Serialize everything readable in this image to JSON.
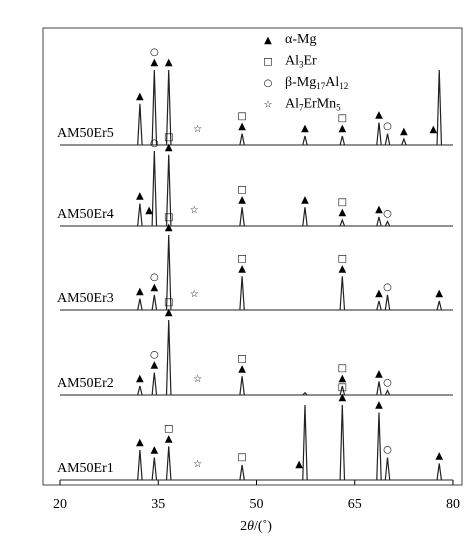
{
  "chart_data": {
    "type": "xrd-stack",
    "xlabel_parts": [
      "2",
      "θ",
      "/(˚)"
    ],
    "xlim": [
      20,
      80
    ],
    "xticks": [
      20,
      35,
      50,
      65,
      80
    ],
    "phases": [
      {
        "symbol": "▲",
        "color": "#000000",
        "label_parts": [
          "α-Mg"
        ]
      },
      {
        "symbol": "□",
        "color": "#777777",
        "label_parts": [
          "Al",
          "3",
          "Er"
        ]
      },
      {
        "symbol": "○",
        "color": "#777777",
        "label_parts": [
          "β-Mg",
          "17",
          "Al",
          "12"
        ]
      },
      {
        "symbol": "☆",
        "color": "#777777",
        "label_parts": [
          "Al",
          "7",
          "ErMn",
          "5"
        ]
      }
    ],
    "series": [
      {
        "name": "AM50Er5",
        "x": [
          32.2,
          34.4,
          36.6,
          47.8,
          57.4,
          63.1,
          68.7,
          70.0,
          72.5,
          77.9
        ],
        "values": [
          55,
          100,
          100,
          15,
          12,
          12,
          30,
          15,
          8,
          100
        ],
        "markers": [
          {
            "x": 32.2,
            "phase": 0
          },
          {
            "x": 34.4,
            "phase": 0
          },
          {
            "x": 34.4,
            "phase": 2
          },
          {
            "x": 36.6,
            "phase": 0
          },
          {
            "x": 41,
            "phase": 3
          },
          {
            "x": 47.8,
            "phase": 0
          },
          {
            "x": 47.8,
            "phase": 1
          },
          {
            "x": 57.4,
            "phase": 0
          },
          {
            "x": 63.1,
            "phase": 0
          },
          {
            "x": 63.1,
            "phase": 1
          },
          {
            "x": 68.7,
            "phase": 0
          },
          {
            "x": 70.0,
            "phase": 2
          },
          {
            "x": 72.5,
            "phase": 0
          },
          {
            "x": 77.0,
            "phase": 0
          }
        ]
      },
      {
        "name": "AM50Er4",
        "x": [
          32.2,
          34.4,
          36.6,
          47.8,
          57.4,
          63.1,
          68.7,
          70.0
        ],
        "values": [
          30,
          100,
          95,
          25,
          25,
          8,
          12,
          6
        ],
        "markers": [
          {
            "x": 32.2,
            "phase": 0
          },
          {
            "x": 33.6,
            "phase": 0
          },
          {
            "x": 34.4,
            "phase": 2
          },
          {
            "x": 36.6,
            "phase": 0
          },
          {
            "x": 36.6,
            "phase": 1
          },
          {
            "x": 40.5,
            "phase": 3
          },
          {
            "x": 47.8,
            "phase": 0
          },
          {
            "x": 47.8,
            "phase": 1
          },
          {
            "x": 57.4,
            "phase": 0
          },
          {
            "x": 63.1,
            "phase": 0
          },
          {
            "x": 63.1,
            "phase": 1
          },
          {
            "x": 68.7,
            "phase": 0
          },
          {
            "x": 70.0,
            "phase": 2
          }
        ]
      },
      {
        "name": "AM50Er3",
        "x": [
          32.2,
          34.4,
          36.6,
          47.8,
          63.1,
          68.7,
          70.0,
          77.9
        ],
        "values": [
          15,
          20,
          100,
          45,
          45,
          12,
          20,
          12
        ],
        "markers": [
          {
            "x": 32.2,
            "phase": 0
          },
          {
            "x": 34.4,
            "phase": 0
          },
          {
            "x": 34.4,
            "phase": 2
          },
          {
            "x": 36.6,
            "phase": 0
          },
          {
            "x": 36.6,
            "phase": 1
          },
          {
            "x": 40.5,
            "phase": 3
          },
          {
            "x": 47.8,
            "phase": 0
          },
          {
            "x": 47.8,
            "phase": 1
          },
          {
            "x": 63.1,
            "phase": 0
          },
          {
            "x": 63.1,
            "phase": 1
          },
          {
            "x": 68.7,
            "phase": 0
          },
          {
            "x": 70.0,
            "phase": 2
          },
          {
            "x": 77.9,
            "phase": 0
          }
        ]
      },
      {
        "name": "AM50Er2",
        "x": [
          32.2,
          34.4,
          36.6,
          47.8,
          57.4,
          63.1,
          68.7,
          70.0
        ],
        "values": [
          12,
          30,
          100,
          25,
          3,
          12,
          18,
          6
        ],
        "markers": [
          {
            "x": 32.2,
            "phase": 0
          },
          {
            "x": 34.4,
            "phase": 0
          },
          {
            "x": 34.4,
            "phase": 2
          },
          {
            "x": 36.6,
            "phase": 0
          },
          {
            "x": 36.6,
            "phase": 1
          },
          {
            "x": 41,
            "phase": 3
          },
          {
            "x": 47.8,
            "phase": 0
          },
          {
            "x": 47.8,
            "phase": 1
          },
          {
            "x": 63.1,
            "phase": 0
          },
          {
            "x": 63.1,
            "phase": 1
          },
          {
            "x": 68.7,
            "phase": 0
          },
          {
            "x": 70.0,
            "phase": 2
          }
        ]
      },
      {
        "name": "AM50Er1",
        "x": [
          32.2,
          34.4,
          36.6,
          47.8,
          57.4,
          63.1,
          68.7,
          70.0,
          77.9
        ],
        "values": [
          40,
          30,
          45,
          20,
          100,
          100,
          90,
          30,
          22
        ],
        "markers": [
          {
            "x": 32.2,
            "phase": 0
          },
          {
            "x": 34.4,
            "phase": 0
          },
          {
            "x": 36.6,
            "phase": 0
          },
          {
            "x": 36.6,
            "phase": 1
          },
          {
            "x": 41,
            "phase": 3
          },
          {
            "x": 47.8,
            "phase": 1
          },
          {
            "x": 56.5,
            "phase": 0
          },
          {
            "x": 63.1,
            "phase": 0
          },
          {
            "x": 63.1,
            "phase": 1
          },
          {
            "x": 68.7,
            "phase": 0
          },
          {
            "x": 70.0,
            "phase": 2
          },
          {
            "x": 77.9,
            "phase": 0
          }
        ]
      }
    ]
  }
}
